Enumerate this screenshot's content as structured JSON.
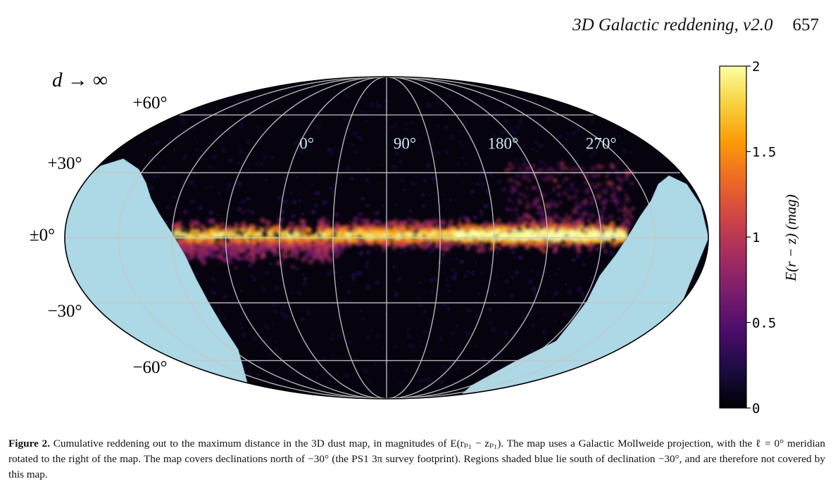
{
  "running_head": {
    "title": "3D Galactic reddening, v2.0",
    "page": "657"
  },
  "chart_data": {
    "type": "heatmap",
    "projection": "Galactic Mollweide",
    "panel_label": "d → ∞",
    "lat_tick_labels": [
      "+60°",
      "+30°",
      "±0°",
      "−30°",
      "−60°"
    ],
    "lon_tick_labels": [
      "270°",
      "180°",
      "90°",
      "0°"
    ],
    "grid": true,
    "masked_region": "declination < −30° (light blue)",
    "mask_color": "#add8e6",
    "colorbar": {
      "label": "E(r − z) (mag)",
      "range": [
        0,
        2
      ],
      "ticks": [
        "0",
        "0.5",
        "1",
        "1.5",
        "2"
      ],
      "colormap": "inferno",
      "stops": [
        "#000004",
        "#1b0c41",
        "#4a0c6b",
        "#781c6d",
        "#a52c60",
        "#cf4446",
        "#ed6925",
        "#fb9b06",
        "#f7d13d",
        "#fcffa4"
      ]
    }
  },
  "caption": {
    "label": "Figure 2.",
    "text": "Cumulative reddening out to the maximum distance in the 3D dust map, in magnitudes of E(rₚ₁ − zₚ₁). The map uses a Galactic Mollweide projection, with the ℓ = 0° meridian rotated to the right of the map. The map covers declinations north of −30° (the PS1 3π survey footprint). Regions shaded blue lie south of declination −30°, and are therefore not covered by this map."
  }
}
